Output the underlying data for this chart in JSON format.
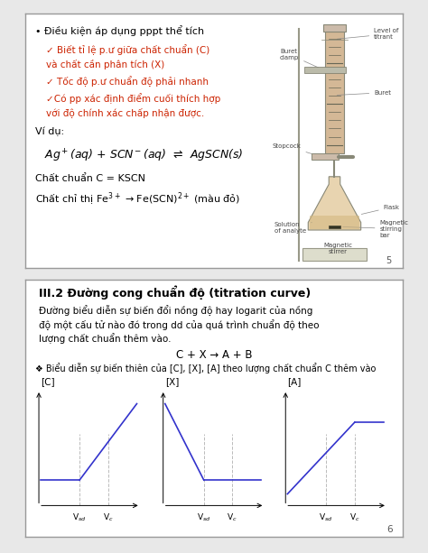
{
  "page_bg": "#e8e8e8",
  "box_bg": "#ffffff",
  "box_edge": "#888888",
  "top_box": {
    "title_bullet": "• Điều kiện áp dụng pppt thể tích",
    "check1": "✓ Biết tỉ lệ p.ư giữa chất chuẩn (C)",
    "check1b": "và chất cần phân tích (X)",
    "check2": "✓ Tốc độ p.ư chuẩn độ phải nhanh",
    "check3": "✓Có pp xác định điểm cuối thích hợp",
    "check3b": "với độ chính xác chấp nhận được.",
    "vidu": "Ví dụ:",
    "equation": "Ag$^+$($aq$) + SCN$^-$($aq$)  ⇌  AgSCN(s)",
    "chat_chuan": "Chất chuẩn C = KSCN",
    "chat_chi_thi": "Chất chỉ thị Fe$^{3+}$ → Fe(SCN)$^{2+}$ (màu đỏ)"
  },
  "bottom_box": {
    "title": "III.2 Đường cong chuẩn độ (titration curve)",
    "desc1": "Đường biểu diễn sự biến đổi nồng độ hay logarit của nồng",
    "desc2": "độ một cấu tử nào đó trong dd của quá trình chuẩn độ theo",
    "desc3": "lượng chất chuẩn thêm vào.",
    "reaction": "C + X → A + B",
    "bullet": "❖ Biểu diễn sự biến thiên của [C], [X], [A] theo lượng chất chuẩn C thêm vào",
    "line_color": "#3333cc",
    "dashed_color": "#bbbbbb",
    "page_num": "6"
  }
}
